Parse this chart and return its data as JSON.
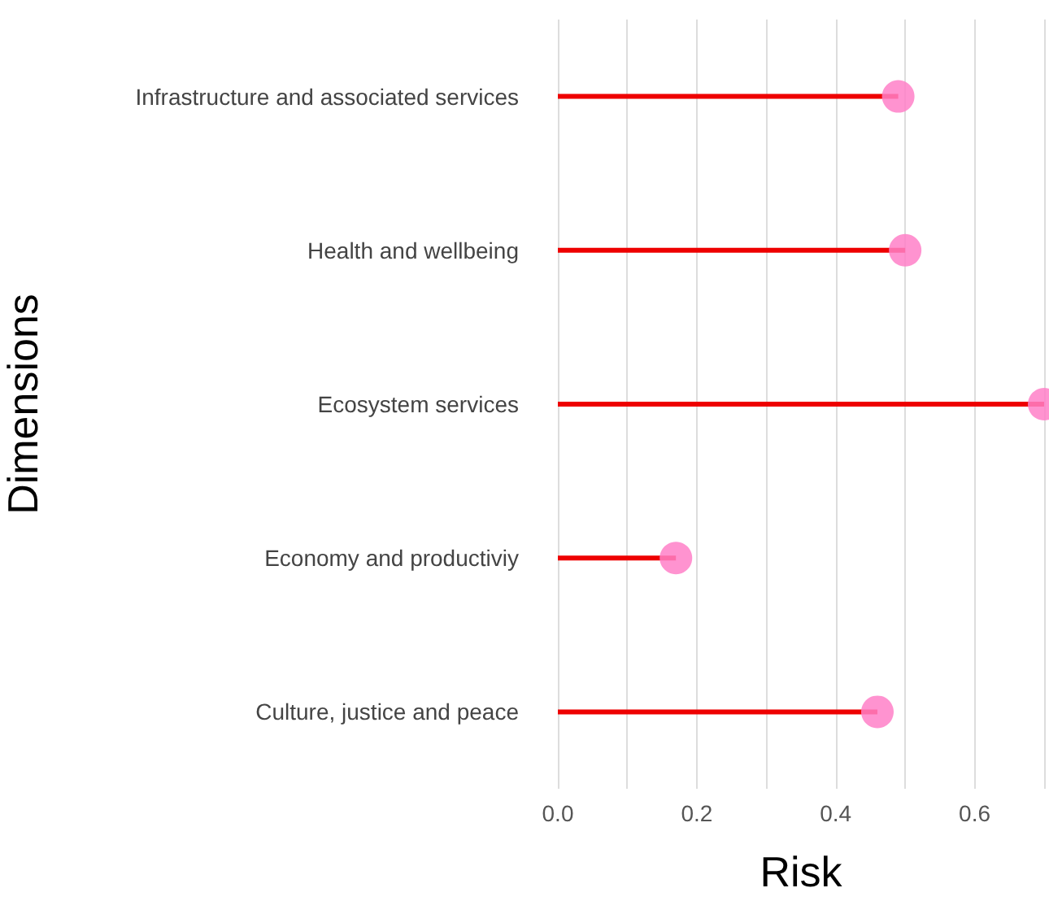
{
  "chart_data": {
    "type": "lollipop",
    "orientation": "horizontal",
    "xlabel": "Risk",
    "ylabel": "Dimensions",
    "categories": [
      "Infrastructure and associated services",
      "Health and wellbeing",
      "Ecosystem services",
      "Economy and productiviy",
      "Culture, justice and peace"
    ],
    "series": [
      {
        "color": "#ff80c8",
        "values": [
          0.49,
          0.5,
          0.7,
          0.17,
          0.46
        ]
      }
    ],
    "xlim": [
      0,
      0.7
    ],
    "xticks": [
      {
        "value": 0,
        "label": "0.0"
      },
      {
        "value": 0.1,
        "label": null
      },
      {
        "value": 0.2,
        "label": "0.2"
      },
      {
        "value": 0.3,
        "label": null
      },
      {
        "value": 0.4,
        "label": "0.4"
      },
      {
        "value": 0.5,
        "label": null
      },
      {
        "value": 0.6,
        "label": "0.6"
      },
      {
        "value": 0.7,
        "label": null
      }
    ],
    "grid": "x",
    "marker": "circle"
  }
}
